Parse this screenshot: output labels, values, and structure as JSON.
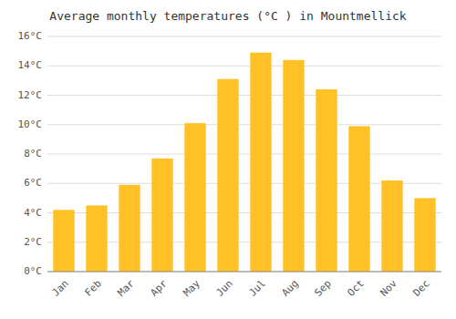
{
  "chart_data": {
    "type": "bar",
    "title": "Average monthly temperatures (°C ) in Mountmellick",
    "categories": [
      "Jan",
      "Feb",
      "Mar",
      "Apr",
      "May",
      "Jun",
      "Jul",
      "Aug",
      "Sep",
      "Oct",
      "Nov",
      "Dec"
    ],
    "values": [
      4.2,
      4.5,
      5.9,
      7.7,
      10.1,
      13.1,
      14.9,
      14.4,
      12.4,
      9.9,
      6.2,
      5.0
    ],
    "color": "#FFC125",
    "ylim": [
      0,
      16
    ],
    "yticks": [
      {
        "value": 0,
        "label": "0°C"
      },
      {
        "value": 2,
        "label": "2°C"
      },
      {
        "value": 4,
        "label": "4°C"
      },
      {
        "value": 6,
        "label": "6°C"
      },
      {
        "value": 8,
        "label": "8°C"
      },
      {
        "value": 10,
        "label": "10°C"
      },
      {
        "value": 12,
        "label": "12°C"
      },
      {
        "value": 14,
        "label": "14°C"
      },
      {
        "value": 16,
        "label": "16°C"
      }
    ],
    "grid": true
  }
}
